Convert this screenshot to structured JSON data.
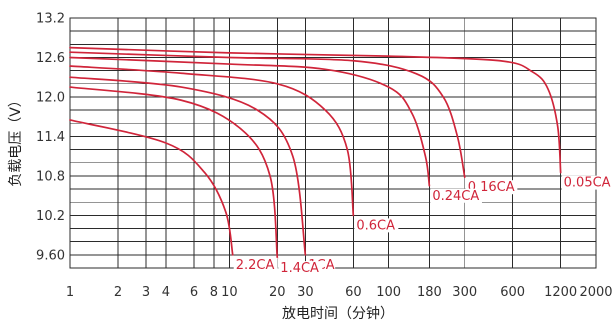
{
  "chart_data": {
    "type": "line",
    "xlabel": "放电时间（分钟）",
    "ylabel": "负载电压（V）",
    "x_scale": "log",
    "xlim": [
      1,
      2000
    ],
    "ylim": [
      9.4,
      13.2
    ],
    "x_ticks": [
      1,
      2,
      3,
      4,
      6,
      8,
      10,
      20,
      30,
      60,
      100,
      180,
      300,
      600,
      1200,
      2000
    ],
    "x_tick_labels": [
      "1",
      "2",
      "3",
      "4",
      "6",
      "8",
      "10",
      "20",
      "30",
      "60",
      "100",
      "180",
      "300",
      "600",
      "1200",
      "2000"
    ],
    "y_ticks": [
      13.2,
      12.6,
      12.0,
      11.4,
      10.8,
      10.2,
      9.6
    ],
    "y_tick_labels": [
      "13.2",
      "12.6",
      "12.0",
      "11.4",
      "10.8",
      "10.2",
      "9.60"
    ],
    "grid": true,
    "line_color": "#d0253a",
    "series": [
      {
        "name": "0.05CA",
        "x": [
          1,
          10,
          100,
          500,
          800,
          1000,
          1150,
          1200
        ],
        "y": [
          12.75,
          12.67,
          12.62,
          12.55,
          12.38,
          12.12,
          11.55,
          10.85
        ]
      },
      {
        "name": "0.16CA",
        "x": [
          1,
          10,
          60,
          150,
          220,
          270,
          300
        ],
        "y": [
          12.68,
          12.6,
          12.55,
          12.35,
          12.0,
          11.4,
          10.78
        ]
      },
      {
        "name": "0.24CA",
        "x": [
          1,
          10,
          40,
          100,
          140,
          170,
          180
        ],
        "y": [
          12.6,
          12.5,
          12.42,
          12.15,
          11.75,
          11.1,
          10.65
        ]
      },
      {
        "name": "0.6CA",
        "x": [
          1,
          5,
          20,
          40,
          55,
          60
        ],
        "y": [
          12.47,
          12.36,
          12.2,
          11.8,
          11.2,
          10.2
        ]
      },
      {
        "name": "1CA",
        "x": [
          1,
          5,
          15,
          25,
          30
        ],
        "y": [
          12.3,
          12.15,
          11.8,
          11.1,
          9.6
        ]
      },
      {
        "name": "1.4CA",
        "x": [
          1,
          5,
          12,
          18,
          20
        ],
        "y": [
          12.15,
          11.95,
          11.5,
          10.8,
          9.55
        ]
      },
      {
        "name": "2.2CA",
        "x": [
          1,
          4,
          7,
          9.5,
          10.5
        ],
        "y": [
          11.65,
          11.3,
          10.85,
          10.25,
          9.6
        ]
      }
    ]
  }
}
